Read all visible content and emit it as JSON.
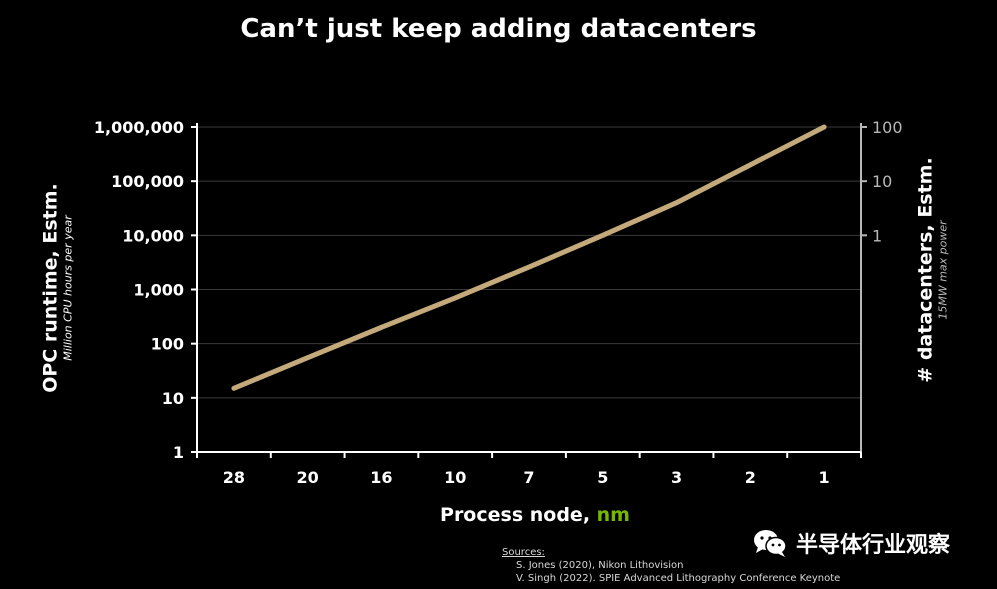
{
  "title": "Can’t just keep adding datacenters",
  "chart_data": {
    "type": "line",
    "title": "Can’t just keep adding datacenters",
    "xlabel": "Process node,",
    "xlabel_unit": "nm",
    "ylabel_left": "OPC runtime, Estm.",
    "ylabel_left_sub": "Million CPU hours per year",
    "ylabel_right": "# datacenters, Estm.",
    "ylabel_right_sub": "15MW max power",
    "categories": [
      "28",
      "20",
      "16",
      "10",
      "7",
      "5",
      "3",
      "2",
      "1"
    ],
    "y_left_scale": "log",
    "y_left_ticks": [
      {
        "value": 1,
        "label": "1"
      },
      {
        "value": 10,
        "label": "10"
      },
      {
        "value": 100,
        "label": "100"
      },
      {
        "value": 1000,
        "label": "1,000"
      },
      {
        "value": 10000,
        "label": "10,000"
      },
      {
        "value": 100000,
        "label": "100,000"
      },
      {
        "value": 1000000,
        "label": "1,000,000"
      }
    ],
    "y_left_range": [
      1,
      1000000
    ],
    "y_right_scale": "log",
    "y_right_ticks": [
      {
        "value": 1,
        "label": "1"
      },
      {
        "value": 10,
        "label": "10"
      },
      {
        "value": 100,
        "label": "100"
      }
    ],
    "series": [
      {
        "values": [
          15,
          55,
          200,
          700,
          2600,
          10000,
          40000,
          200000,
          1000000
        ]
      }
    ],
    "grid": true,
    "line_color": "#c4a97a"
  },
  "sources": {
    "heading": "Sources:",
    "items": [
      "S. Jones (2020), Nikon Lithovision",
      "V. Singh (2022). SPIE Advanced Lithography Conference Keynote"
    ]
  },
  "watermark": {
    "text": "半导体行业观察",
    "icon": "wechat-icon"
  },
  "colors": {
    "background": "#000000",
    "text": "#ffffff",
    "accent_unit": "#76b900",
    "line": "#c4a97a",
    "right_axis": "#b8b8b8",
    "grid": "#3a3a3a"
  }
}
